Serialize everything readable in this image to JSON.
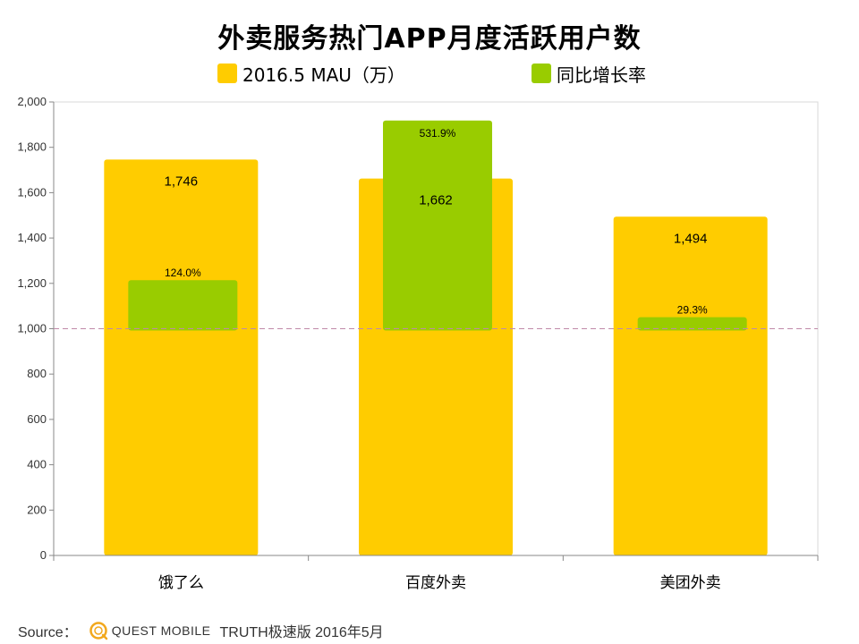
{
  "chart_data": {
    "type": "bar",
    "title": "外卖服务热门APP月度活跃用户数",
    "categories": [
      "饿了么",
      "百度外卖",
      "美团外卖"
    ],
    "series": [
      {
        "name": "2016.5  MAU（万）",
        "values": [
          1746,
          1662,
          1494
        ],
        "labels": [
          "1,746",
          "1,662",
          "1,494"
        ]
      },
      {
        "name": "同比增长率",
        "values": [
          124.0,
          531.9,
          29.3
        ],
        "labels": [
          "124.0%",
          "531.9%",
          "29.3%"
        ]
      }
    ],
    "ylim": [
      0,
      2000
    ],
    "yticks": [
      "0",
      "200",
      "400",
      "600",
      "800",
      "1,000",
      "1,200",
      "1,400",
      "1,600",
      "1,800",
      "2,000"
    ],
    "reference_line": 1000,
    "growth_baseline": 1000,
    "growth_scale_per_percent": 1.726,
    "xlabel": "",
    "ylabel": "",
    "grid": false,
    "legend_position": "top"
  },
  "colors": {
    "mau": "#FFCC00",
    "growth": "#99CC00",
    "reference_line": "#C08AA8",
    "axis": "#888888"
  },
  "legend": {
    "mau_label": "2016.5  MAU（万）",
    "growth_label": "同比增长率"
  },
  "footer": {
    "source_label": "Source：",
    "logo_text": "QUEST MOBILE",
    "source_text": "TRUTH极速版 2016年5月"
  }
}
